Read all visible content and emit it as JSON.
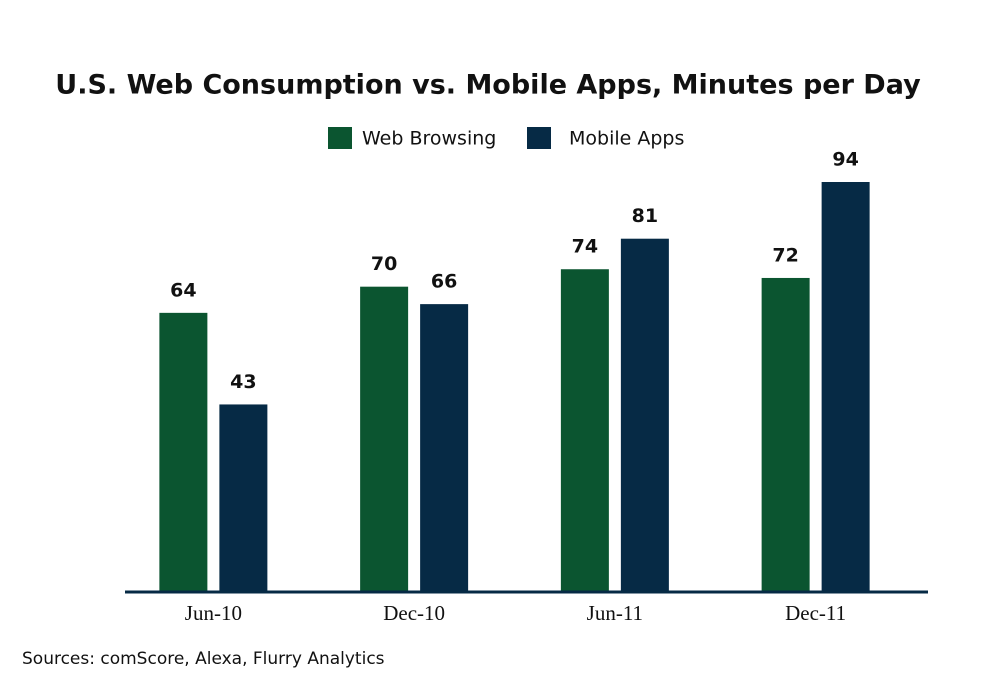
{
  "chart_data": {
    "type": "bar",
    "title": "U.S. Web Consumption vs. Mobile Apps, Minutes per Day",
    "source": "Sources: comScore, Alexa, Flurry Analytics",
    "categories": [
      "Jun-10",
      "Dec-10",
      "Jun-11",
      "Dec-11"
    ],
    "series": [
      {
        "name": "Web Browsing",
        "color": "#0b5530",
        "values": [
          64,
          70,
          74,
          72
        ]
      },
      {
        "name": "Mobile Apps",
        "color": "#062a45",
        "values": [
          43,
          66,
          81,
          94
        ]
      }
    ],
    "legend": "top"
  }
}
